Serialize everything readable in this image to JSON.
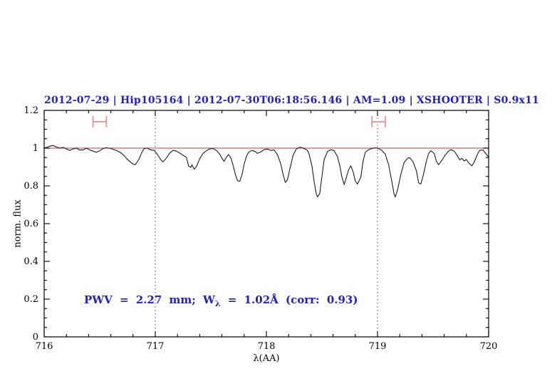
{
  "title": "2012-07-29 | Hip105164 | 2012-07-30T06:18:56.146 | AM=1.09 | XSHOOTER | S0.9x11",
  "annotation": {
    "prefix": "PWV = 2.27 mm; W",
    "subscript": "λ",
    "suffix": " = 1.02Å (corr: 0.93)"
  },
  "colors": {
    "title_blue": "#2020d0",
    "continuum_red": "#e06060",
    "marker_pink": "#f08c8c",
    "spectrum_black": "#1c1c1c",
    "dotted_gray": "#555555"
  },
  "chart_data": {
    "type": "line",
    "title": "2012-07-29 | Hip105164 | 2012-07-30T06:18:56.146 | AM=1.09 | XSHOOTER | S0.9x11",
    "xlabel": "λ(AA)",
    "ylabel": "norm. flux",
    "xlim": [
      716,
      720
    ],
    "ylim": [
      0,
      1.2
    ],
    "grid": false,
    "x_major_ticks": [
      716,
      717,
      718,
      719,
      720
    ],
    "x_tick_labels": [
      "716",
      "717",
      "718",
      "719",
      "720"
    ],
    "x_minor_step": 0.2,
    "y_major_ticks": [
      0,
      0.2,
      0.4,
      0.6,
      0.8,
      1,
      1.2
    ],
    "y_tick_labels": [
      "0",
      "0.2",
      "0.4",
      "0.6",
      "0.8",
      "1",
      "1.2"
    ],
    "y_minor_step": 0.05,
    "dotted_lines_x": [
      717,
      719
    ],
    "continuum": {
      "y": 1.0
    },
    "range_markers": [
      {
        "x_min": 716.44,
        "x_max": 716.56,
        "y": 1.14,
        "cap_half_height": 0.03
      },
      {
        "x_min": 718.95,
        "x_max": 719.07,
        "y": 1.14,
        "cap_half_height": 0.03
      }
    ],
    "series": [
      {
        "name": "spectrum",
        "points": [
          [
            716.0,
            1.0
          ],
          [
            716.03,
            1.006
          ],
          [
            716.06,
            1.012
          ],
          [
            716.08,
            1.014
          ],
          [
            716.11,
            1.006
          ],
          [
            716.14,
            1.0
          ],
          [
            716.17,
            1.004
          ],
          [
            716.2,
            0.996
          ],
          [
            716.23,
            0.988
          ],
          [
            716.26,
            0.996
          ],
          [
            716.29,
            1.0
          ],
          [
            716.32,
            0.99
          ],
          [
            716.35,
            0.99
          ],
          [
            716.38,
            1.0
          ],
          [
            716.41,
            0.99
          ],
          [
            716.44,
            0.984
          ],
          [
            716.47,
            0.978
          ],
          [
            716.5,
            0.986
          ],
          [
            716.53,
            0.998
          ],
          [
            716.56,
            1.002
          ],
          [
            716.6,
            0.998
          ],
          [
            716.63,
            0.992
          ],
          [
            716.66,
            0.985
          ],
          [
            716.69,
            0.976
          ],
          [
            716.72,
            0.96
          ],
          [
            716.75,
            0.94
          ],
          [
            716.78,
            0.925
          ],
          [
            716.8,
            0.916
          ],
          [
            716.82,
            0.912
          ],
          [
            716.85,
            0.938
          ],
          [
            716.88,
            0.978
          ],
          [
            716.9,
            0.998
          ],
          [
            716.93,
            1.0
          ],
          [
            716.96,
            0.99
          ],
          [
            716.99,
            0.988
          ],
          [
            717.02,
            0.966
          ],
          [
            717.05,
            0.938
          ],
          [
            717.07,
            0.927
          ],
          [
            717.1,
            0.948
          ],
          [
            717.13,
            0.974
          ],
          [
            717.16,
            0.988
          ],
          [
            717.19,
            0.984
          ],
          [
            717.22,
            0.974
          ],
          [
            717.25,
            0.962
          ],
          [
            717.28,
            0.952
          ],
          [
            717.3,
            0.905
          ],
          [
            717.32,
            0.898
          ],
          [
            717.33,
            0.912
          ],
          [
            717.35,
            0.888
          ],
          [
            717.37,
            0.902
          ],
          [
            717.4,
            0.944
          ],
          [
            717.43,
            0.972
          ],
          [
            717.46,
            0.986
          ],
          [
            717.49,
            0.996
          ],
          [
            717.52,
            0.998
          ],
          [
            717.55,
            0.988
          ],
          [
            717.58,
            0.968
          ],
          [
            717.6,
            0.946
          ],
          [
            717.62,
            0.93
          ],
          [
            717.64,
            0.952
          ],
          [
            717.66,
            0.966
          ],
          [
            717.68,
            0.948
          ],
          [
            717.7,
            0.91
          ],
          [
            717.72,
            0.862
          ],
          [
            717.74,
            0.828
          ],
          [
            717.76,
            0.824
          ],
          [
            717.78,
            0.858
          ],
          [
            717.8,
            0.916
          ],
          [
            717.82,
            0.956
          ],
          [
            717.84,
            0.978
          ],
          [
            717.87,
            0.988
          ],
          [
            717.9,
            0.982
          ],
          [
            717.92,
            0.972
          ],
          [
            717.95,
            0.98
          ],
          [
            717.98,
            0.992
          ],
          [
            718.01,
            0.995
          ],
          [
            718.04,
            0.988
          ],
          [
            718.07,
            0.99
          ],
          [
            718.1,
            0.965
          ],
          [
            718.13,
            0.915
          ],
          [
            718.15,
            0.862
          ],
          [
            718.17,
            0.818
          ],
          [
            718.19,
            0.832
          ],
          [
            718.21,
            0.888
          ],
          [
            718.24,
            0.962
          ],
          [
            718.27,
            0.996
          ],
          [
            718.3,
            1.005
          ],
          [
            718.33,
            1.0
          ],
          [
            718.36,
            0.992
          ],
          [
            718.38,
            0.978
          ],
          [
            718.41,
            0.905
          ],
          [
            718.43,
            0.82
          ],
          [
            718.45,
            0.755
          ],
          [
            718.46,
            0.742
          ],
          [
            718.48,
            0.76
          ],
          [
            718.5,
            0.85
          ],
          [
            718.52,
            0.94
          ],
          [
            718.55,
            0.982
          ],
          [
            718.58,
            0.992
          ],
          [
            718.61,
            0.986
          ],
          [
            718.64,
            0.955
          ],
          [
            718.66,
            0.908
          ],
          [
            718.68,
            0.846
          ],
          [
            718.7,
            0.806
          ],
          [
            718.72,
            0.845
          ],
          [
            718.74,
            0.885
          ],
          [
            718.76,
            0.906
          ],
          [
            718.78,
            0.876
          ],
          [
            718.8,
            0.826
          ],
          [
            718.82,
            0.81
          ],
          [
            718.85,
            0.846
          ],
          [
            718.87,
            0.93
          ],
          [
            718.89,
            0.978
          ],
          [
            718.92,
            0.992
          ],
          [
            718.95,
            0.998
          ],
          [
            718.98,
            1.002
          ],
          [
            719.01,
            0.998
          ],
          [
            719.04,
            0.988
          ],
          [
            719.07,
            0.968
          ],
          [
            719.1,
            0.912
          ],
          [
            719.13,
            0.82
          ],
          [
            719.15,
            0.752
          ],
          [
            719.16,
            0.742
          ],
          [
            719.18,
            0.778
          ],
          [
            719.21,
            0.862
          ],
          [
            719.24,
            0.924
          ],
          [
            719.27,
            0.946
          ],
          [
            719.29,
            0.95
          ],
          [
            719.32,
            0.928
          ],
          [
            719.35,
            0.88
          ],
          [
            719.37,
            0.816
          ],
          [
            719.39,
            0.81
          ],
          [
            719.41,
            0.852
          ],
          [
            719.44,
            0.93
          ],
          [
            719.46,
            0.972
          ],
          [
            719.48,
            0.986
          ],
          [
            719.51,
            0.972
          ],
          [
            719.53,
            0.93
          ],
          [
            719.55,
            0.912
          ],
          [
            719.58,
            0.936
          ],
          [
            719.61,
            0.964
          ],
          [
            719.64,
            0.984
          ],
          [
            719.66,
            0.992
          ],
          [
            719.69,
            0.984
          ],
          [
            719.72,
            0.958
          ],
          [
            719.74,
            0.938
          ],
          [
            719.76,
            0.946
          ],
          [
            719.78,
            0.932
          ],
          [
            719.8,
            0.94
          ],
          [
            719.82,
            0.922
          ],
          [
            719.85,
            0.906
          ],
          [
            719.87,
            0.926
          ],
          [
            719.9,
            0.968
          ],
          [
            719.92,
            0.988
          ],
          [
            719.95,
            0.99
          ],
          [
            719.97,
            0.974
          ],
          [
            720.0,
            0.952
          ]
        ]
      }
    ]
  }
}
